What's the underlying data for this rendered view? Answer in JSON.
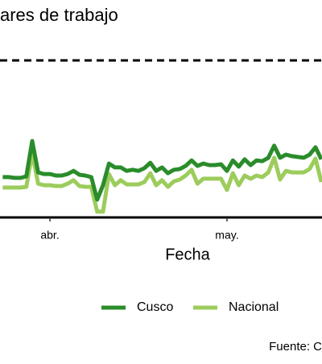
{
  "chart_data": {
    "type": "line",
    "title": "ares de trabajo",
    "x_label": "Fecha",
    "source": "Fuente: C",
    "categories": [
      null,
      null,
      null,
      null,
      null,
      null,
      null,
      null,
      "abr.",
      null,
      null,
      null,
      null,
      null,
      null,
      null,
      null,
      null,
      null,
      null,
      null,
      null,
      null,
      null,
      null,
      null,
      null,
      null,
      null,
      null,
      null,
      null,
      null,
      null,
      null,
      null,
      null,
      null,
      "may.",
      null,
      null,
      null,
      null,
      null,
      null,
      null,
      null,
      null,
      null,
      null,
      null,
      null,
      null,
      null,
      null
    ],
    "series": [
      {
        "name": "Cusco",
        "color": "#2a8c2a",
        "values": [
          -44.6,
          -44.6,
          -44.9,
          -44.9,
          -44.3,
          -30.8,
          -42.8,
          -43.4,
          -43.4,
          -44.0,
          -44.0,
          -43.4,
          -42.2,
          -43.7,
          -44.0,
          -44.6,
          -53.2,
          -47.7,
          -39.4,
          -40.9,
          -40.9,
          -42.2,
          -41.8,
          -42.2,
          -41.2,
          -39.1,
          -42.2,
          -40.9,
          -43.1,
          -41.8,
          -41.5,
          -40.3,
          -38.2,
          -40.3,
          -39.4,
          -40.0,
          -40.0,
          -39.7,
          -42.2,
          -38.2,
          -40.6,
          -37.8,
          -40.0,
          -38.2,
          -38.5,
          -37.2,
          -32.6,
          -37.2,
          -36.0,
          -36.6,
          -36.9,
          -37.2,
          -36.0,
          -33.2,
          -37.8
        ]
      },
      {
        "name": "Nacional",
        "color": "#9ccc5c",
        "values": [
          -48.6,
          -48.6,
          -48.6,
          -48.6,
          -48.3,
          -35.4,
          -47.1,
          -47.7,
          -47.7,
          -48.0,
          -48.0,
          -47.1,
          -45.8,
          -48.0,
          -48.3,
          -48.3,
          -57.8,
          -57.8,
          -43.4,
          -47.7,
          -45.8,
          -47.4,
          -47.4,
          -47.4,
          -46.5,
          -43.1,
          -47.7,
          -45.8,
          -48.3,
          -46.2,
          -45.5,
          -44.0,
          -41.8,
          -47.1,
          -45.2,
          -45.2,
          -45.2,
          -45.2,
          -49.5,
          -43.1,
          -47.7,
          -44.0,
          -45.2,
          -44.0,
          -44.6,
          -42.8,
          -37.2,
          -45.5,
          -42.2,
          -42.8,
          -42.8,
          -42.8,
          -41.5,
          -37.5,
          -46.5
        ]
      }
    ],
    "reference_line": 0,
    "ylim": [
      -60,
      20
    ]
  }
}
